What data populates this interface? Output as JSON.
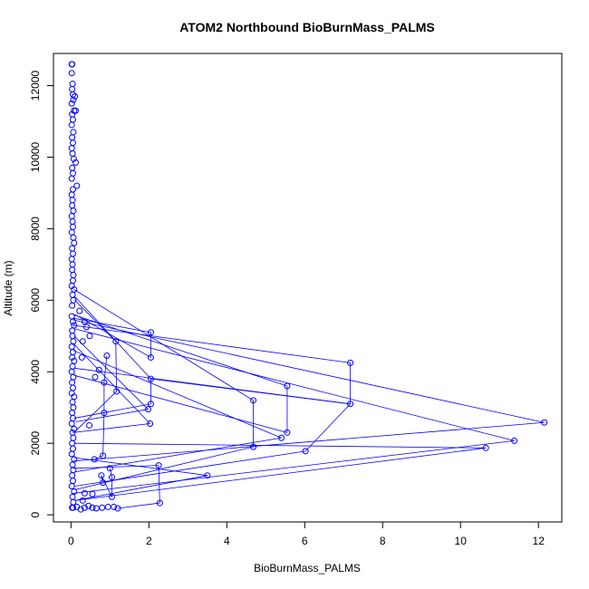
{
  "chart_data": {
    "type": "scatter",
    "title": "ATOM2 Northbound BioBurnMass_PALMS",
    "xlabel": "BioBurnMass_PALMS",
    "ylabel": "Altitude (m)",
    "xlim": [
      -0.45,
      12.6
    ],
    "ylim": [
      -200,
      12900
    ],
    "xticks": [
      0,
      2,
      4,
      6,
      8,
      10,
      12
    ],
    "yticks": [
      0,
      2000,
      4000,
      6000,
      8000,
      10000,
      12000
    ],
    "xtick_labels": [
      "0",
      "2",
      "4",
      "6",
      "8",
      "10",
      "12"
    ],
    "ytick_labels": [
      "0",
      "2000",
      "4000",
      "6000",
      "8000",
      "10000",
      "12000"
    ],
    "grid": false,
    "series_color": "#0000ff",
    "points": [
      [
        0.02,
        12600
      ],
      [
        0.03,
        12600
      ],
      [
        0.02,
        12350
      ],
      [
        0.04,
        12050
      ],
      [
        0.03,
        11900
      ],
      [
        0.05,
        11750
      ],
      [
        0.1,
        11700
      ],
      [
        0.06,
        11600
      ],
      [
        0.02,
        11500
      ],
      [
        0.08,
        11300
      ],
      [
        0.12,
        11300
      ],
      [
        0.03,
        11200
      ],
      [
        0.05,
        11050
      ],
      [
        0.02,
        10900
      ],
      [
        0.06,
        10700
      ],
      [
        0.03,
        10550
      ],
      [
        0.05,
        10400
      ],
      [
        0.02,
        10250
      ],
      [
        0.04,
        10100
      ],
      [
        0.07,
        9950
      ],
      [
        0.12,
        9850
      ],
      [
        0.03,
        9700
      ],
      [
        0.05,
        9550
      ],
      [
        0.02,
        9400
      ],
      [
        0.15,
        9200
      ],
      [
        0.05,
        9100
      ],
      [
        0.02,
        8950
      ],
      [
        0.04,
        8800
      ],
      [
        0.03,
        8650
      ],
      [
        0.06,
        8500
      ],
      [
        0.02,
        8350
      ],
      [
        0.04,
        8200
      ],
      [
        0.05,
        8050
      ],
      [
        0.02,
        7900
      ],
      [
        0.06,
        7750
      ],
      [
        0.08,
        7600
      ],
      [
        0.03,
        7450
      ],
      [
        0.05,
        7300
      ],
      [
        0.02,
        7150
      ],
      [
        0.04,
        7000
      ],
      [
        0.03,
        6850
      ],
      [
        0.06,
        6700
      ],
      [
        0.05,
        6550
      ],
      [
        0.02,
        6400
      ],
      [
        0.08,
        6300
      ],
      [
        0.04,
        6150
      ],
      [
        0.06,
        6000
      ],
      [
        0.03,
        5850
      ],
      [
        0.22,
        5700
      ],
      [
        0.02,
        5550
      ],
      [
        0.05,
        5400
      ],
      [
        0.08,
        5300
      ],
      [
        0.03,
        5150
      ],
      [
        0.04,
        5000
      ],
      [
        0.06,
        4850
      ],
      [
        0.02,
        4700
      ],
      [
        0.05,
        4550
      ],
      [
        0.03,
        4400
      ],
      [
        0.08,
        4300
      ],
      [
        0.04,
        4150
      ],
      [
        0.02,
        4000
      ],
      [
        0.06,
        3850
      ],
      [
        0.03,
        3700
      ],
      [
        0.05,
        3550
      ],
      [
        0.02,
        3400
      ],
      [
        0.08,
        3300
      ],
      [
        0.04,
        3150
      ],
      [
        0.06,
        3000
      ],
      [
        0.03,
        2850
      ],
      [
        0.05,
        2700
      ],
      [
        0.02,
        2550
      ],
      [
        0.08,
        2400
      ],
      [
        0.04,
        2300
      ],
      [
        0.06,
        2150
      ],
      [
        0.03,
        2000
      ],
      [
        0.05,
        1850
      ],
      [
        0.02,
        1700
      ],
      [
        0.08,
        1550
      ],
      [
        0.04,
        1400
      ],
      [
        0.06,
        1250
      ],
      [
        0.03,
        1100
      ],
      [
        0.05,
        950
      ],
      [
        0.02,
        800
      ],
      [
        0.08,
        650
      ],
      [
        0.04,
        500
      ],
      [
        0.06,
        350
      ],
      [
        0.03,
        200
      ],
      [
        0.05,
        200
      ],
      [
        2.05,
        5100
      ],
      [
        2.05,
        4400
      ],
      [
        1.15,
        4850
      ],
      [
        0.92,
        4450
      ],
      [
        0.72,
        4050
      ],
      [
        0.62,
        3850
      ],
      [
        0.85,
        3700
      ],
      [
        1.17,
        3450
      ],
      [
        2.05,
        3800
      ],
      [
        2.05,
        3100
      ],
      [
        1.98,
        2950
      ],
      [
        2.03,
        2550
      ],
      [
        0.85,
        2850
      ],
      [
        0.47,
        2500
      ],
      [
        0.6,
        1550
      ],
      [
        0.82,
        1650
      ],
      [
        1.0,
        1300
      ],
      [
        0.78,
        1100
      ],
      [
        0.82,
        900
      ],
      [
        1.05,
        1050
      ],
      [
        2.25,
        1380
      ],
      [
        2.28,
        330
      ],
      [
        1.05,
        500
      ],
      [
        1.1,
        220
      ],
      [
        1.2,
        180
      ],
      [
        0.95,
        220
      ],
      [
        0.8,
        200
      ],
      [
        0.65,
        180
      ],
      [
        0.55,
        200
      ],
      [
        0.45,
        250
      ],
      [
        0.35,
        200
      ],
      [
        0.3,
        400
      ],
      [
        0.25,
        150
      ],
      [
        0.15,
        220
      ],
      [
        0.55,
        580
      ],
      [
        0.35,
        600
      ],
      [
        0.28,
        4400
      ],
      [
        0.3,
        4850
      ],
      [
        0.4,
        5250
      ],
      [
        0.35,
        5400
      ],
      [
        0.48,
        5000
      ],
      [
        4.68,
        3200
      ],
      [
        4.68,
        1900
      ],
      [
        5.55,
        3600
      ],
      [
        5.55,
        2300
      ],
      [
        5.4,
        2150
      ],
      [
        7.17,
        4250
      ],
      [
        7.17,
        3100
      ],
      [
        6.02,
        1780
      ],
      [
        3.5,
        1100
      ],
      [
        12.15,
        2580
      ],
      [
        11.38,
        2070
      ],
      [
        10.65,
        1870
      ]
    ],
    "segments": [
      [
        [
          0.05,
          5500
        ],
        [
          2.05,
          5100
        ]
      ],
      [
        [
          2.05,
          5100
        ],
        [
          2.05,
          4400
        ]
      ],
      [
        [
          2.05,
          4400
        ],
        [
          0.1,
          5600
        ]
      ],
      [
        [
          0.05,
          5300
        ],
        [
          7.17,
          4250
        ]
      ],
      [
        [
          7.17,
          4250
        ],
        [
          7.17,
          3100
        ]
      ],
      [
        [
          7.17,
          3100
        ],
        [
          0.08,
          4100
        ]
      ],
      [
        [
          0.05,
          5600
        ],
        [
          5.55,
          3600
        ]
      ],
      [
        [
          5.55,
          3600
        ],
        [
          5.55,
          2300
        ]
      ],
      [
        [
          5.55,
          2300
        ],
        [
          0.08,
          3900
        ]
      ],
      [
        [
          0.08,
          6300
        ],
        [
          4.68,
          3200
        ]
      ],
      [
        [
          4.68,
          3200
        ],
        [
          4.68,
          1900
        ]
      ],
      [
        [
          4.68,
          1900
        ],
        [
          0.1,
          700
        ]
      ],
      [
        [
          0.05,
          5450
        ],
        [
          12.15,
          2580
        ]
      ],
      [
        [
          12.15,
          2580
        ],
        [
          0.05,
          1500
        ]
      ],
      [
        [
          0.1,
          5200
        ],
        [
          11.38,
          2070
        ]
      ],
      [
        [
          11.38,
          2070
        ],
        [
          0.05,
          600
        ]
      ],
      [
        [
          0.08,
          2000
        ],
        [
          10.65,
          1870
        ]
      ],
      [
        [
          10.65,
          1870
        ],
        [
          0.1,
          400
        ]
      ],
      [
        [
          0.1,
          6100
        ],
        [
          2.05,
          3800
        ]
      ],
      [
        [
          2.05,
          3800
        ],
        [
          7.17,
          3100
        ]
      ],
      [
        [
          2.05,
          3800
        ],
        [
          2.05,
          3100
        ]
      ],
      [
        [
          2.05,
          3100
        ],
        [
          0.08,
          2700
        ]
      ],
      [
        [
          0.08,
          5000
        ],
        [
          1.98,
          2950
        ]
      ],
      [
        [
          1.98,
          2950
        ],
        [
          0.12,
          2600
        ]
      ],
      [
        [
          0.05,
          4800
        ],
        [
          2.03,
          2550
        ]
      ],
      [
        [
          2.03,
          2550
        ],
        [
          0.05,
          2300
        ]
      ],
      [
        [
          0.05,
          4600
        ],
        [
          5.4,
          2150
        ]
      ],
      [
        [
          5.4,
          2150
        ],
        [
          0.1,
          1200
        ]
      ],
      [
        [
          7.17,
          3100
        ],
        [
          6.02,
          1780
        ]
      ],
      [
        [
          6.02,
          1780
        ],
        [
          0.1,
          800
        ]
      ],
      [
        [
          0.08,
          1600
        ],
        [
          3.5,
          1100
        ]
      ],
      [
        [
          3.5,
          1100
        ],
        [
          0.1,
          400
        ]
      ],
      [
        [
          2.25,
          1380
        ],
        [
          2.28,
          330
        ]
      ],
      [
        [
          2.28,
          330
        ],
        [
          1.2,
          180
        ]
      ],
      [
        [
          0.05,
          1300
        ],
        [
          2.25,
          1380
        ]
      ],
      [
        [
          0.1,
          6000
        ],
        [
          1.15,
          4850
        ]
      ],
      [
        [
          1.15,
          4850
        ],
        [
          1.17,
          3450
        ]
      ],
      [
        [
          1.17,
          3450
        ],
        [
          0.08,
          2300
        ]
      ],
      [
        [
          0.92,
          4450
        ],
        [
          0.85,
          3700
        ]
      ],
      [
        [
          0.85,
          3700
        ],
        [
          0.85,
          2850
        ]
      ],
      [
        [
          0.85,
          2850
        ],
        [
          0.82,
          1650
        ]
      ],
      [
        [
          0.82,
          1650
        ],
        [
          0.6,
          1550
        ]
      ],
      [
        [
          1.0,
          1300
        ],
        [
          1.05,
          1050
        ]
      ],
      [
        [
          1.05,
          1050
        ],
        [
          1.05,
          500
        ]
      ],
      [
        [
          1.05,
          500
        ],
        [
          0.78,
          1100
        ]
      ],
      [
        [
          0.78,
          1100
        ],
        [
          0.82,
          900
        ]
      ]
    ]
  }
}
